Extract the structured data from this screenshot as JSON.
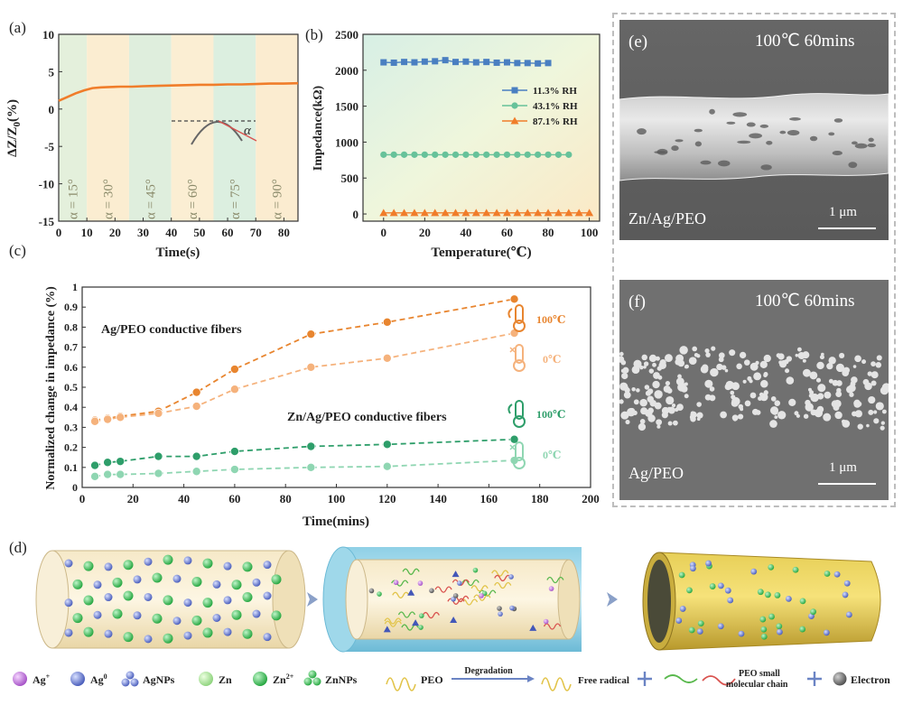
{
  "colors": {
    "orange": "#f07d2a",
    "blue": "#4a7fc1",
    "green": "#67c29a",
    "dark_orange": "#e8852f",
    "light_orange": "#f5b27c",
    "dark_green": "#2e9e6a",
    "light_green": "#8fd6b2"
  },
  "chart_data": [
    {
      "panel": "(a)",
      "type": "line",
      "xlabel": "Time(s)",
      "ylabel": "ΔZ/Z0(%)",
      "xlim": [
        0,
        85
      ],
      "ylim": [
        -15,
        10
      ],
      "xticks": [
        "0",
        "10",
        "20",
        "30",
        "40",
        "50",
        "60",
        "70",
        "80"
      ],
      "yticks": [
        "-15",
        "-10",
        "-5",
        "0",
        "5",
        "10"
      ],
      "bands": [
        {
          "label": "α = 15°",
          "start": 0,
          "end": 10,
          "color": "#e4f0dc"
        },
        {
          "label": "α = 30°",
          "start": 10,
          "end": 25,
          "color": "#fbedd1"
        },
        {
          "label": "α = 45°",
          "start": 25,
          "end": 40,
          "color": "#dfeedd"
        },
        {
          "label": "α = 60°",
          "start": 40,
          "end": 55,
          "color": "#fbeed3"
        },
        {
          "label": "α = 75°",
          "start": 55,
          "end": 70,
          "color": "#dcefe0"
        },
        {
          "label": "α = 90°",
          "start": 70,
          "end": 85,
          "color": "#fbecd0"
        }
      ],
      "x": [
        0,
        3,
        6,
        9,
        12,
        15,
        18,
        22,
        26,
        30,
        35,
        40,
        45,
        50,
        55,
        60,
        65,
        70,
        75,
        80,
        85
      ],
      "y": [
        1.1,
        1.6,
        2.1,
        2.5,
        2.8,
        2.9,
        2.95,
        3.0,
        3.0,
        3.05,
        3.1,
        3.15,
        3.2,
        3.25,
        3.25,
        3.3,
        3.3,
        3.35,
        3.4,
        3.4,
        3.45
      ],
      "inset_label": "α"
    },
    {
      "panel": "(b)",
      "type": "line",
      "xlabel": "Temperature(℃)",
      "ylabel": "Impedance(kΩ)",
      "xlim": [
        -10,
        105
      ],
      "ylim": [
        -100,
        2500
      ],
      "xticks": [
        "0",
        "20",
        "40",
        "60",
        "80",
        "100"
      ],
      "yticks": [
        "0",
        "500",
        "1000",
        "1500",
        "2000",
        "2500"
      ],
      "series": [
        {
          "name": "11.3% RH",
          "marker": "square",
          "color": "#4a7fc1",
          "x": [
            0,
            5,
            10,
            15,
            20,
            25,
            30,
            35,
            40,
            45,
            50,
            55,
            60,
            65,
            70,
            75,
            80
          ],
          "y": [
            2110,
            2105,
            2115,
            2110,
            2120,
            2125,
            2140,
            2115,
            2120,
            2110,
            2115,
            2105,
            2110,
            2100,
            2100,
            2095,
            2100
          ]
        },
        {
          "name": "43.1% RH",
          "marker": "circle",
          "color": "#67c29a",
          "x": [
            0,
            5,
            10,
            15,
            20,
            25,
            30,
            35,
            40,
            45,
            50,
            55,
            60,
            65,
            70,
            75,
            80,
            85,
            90
          ],
          "y": [
            825,
            825,
            825,
            825,
            825,
            825,
            825,
            825,
            825,
            825,
            825,
            825,
            825,
            825,
            825,
            825,
            825,
            825,
            825
          ]
        },
        {
          "name": "87.1% RH",
          "marker": "triangle",
          "color": "#f07d2a",
          "x": [
            0,
            5,
            10,
            15,
            20,
            25,
            30,
            35,
            40,
            45,
            50,
            55,
            60,
            65,
            70,
            75,
            80,
            85,
            90,
            95,
            100
          ],
          "y": [
            15,
            15,
            15,
            15,
            15,
            15,
            15,
            15,
            15,
            15,
            15,
            15,
            15,
            15,
            15,
            15,
            15,
            15,
            15,
            15,
            15
          ]
        }
      ]
    },
    {
      "panel": "(c)",
      "type": "line",
      "xlabel": "Time(mins)",
      "ylabel": "Normalized change in impedance (%)",
      "xlim": [
        0,
        200
      ],
      "ylim": [
        0,
        1
      ],
      "xticks": [
        "0",
        "20",
        "40",
        "60",
        "80",
        "100",
        "120",
        "140",
        "160",
        "180",
        "200"
      ],
      "yticks": [
        "0",
        "0.1",
        "0.2",
        "0.3",
        "0.4",
        "0.5",
        "0.6",
        "0.7",
        "0.8",
        "0.9",
        "1"
      ],
      "annotations": [
        "Ag/PEO conductive fibers",
        "Zn/Ag/PEO conductive fibers"
      ],
      "series": [
        {
          "name": "100℃",
          "group": "Ag/PEO",
          "color": "#e8852f",
          "x": [
            5,
            10,
            15,
            30,
            45,
            60,
            90,
            120,
            170
          ],
          "y": [
            0.335,
            0.345,
            0.355,
            0.38,
            0.475,
            0.59,
            0.765,
            0.825,
            0.94
          ]
        },
        {
          "name": "0℃",
          "group": "Ag/PEO",
          "color": "#f5b27c",
          "x": [
            5,
            10,
            15,
            30,
            45,
            60,
            90,
            120,
            170
          ],
          "y": [
            0.33,
            0.34,
            0.35,
            0.37,
            0.405,
            0.49,
            0.6,
            0.645,
            0.77
          ]
        },
        {
          "name": "100℃",
          "group": "Zn/Ag/PEO",
          "color": "#2e9e6a",
          "x": [
            5,
            10,
            15,
            30,
            45,
            60,
            90,
            120,
            170
          ],
          "y": [
            0.11,
            0.125,
            0.13,
            0.155,
            0.155,
            0.18,
            0.205,
            0.215,
            0.24
          ]
        },
        {
          "name": "0℃",
          "group": "Zn/Ag/PEO",
          "color": "#8fd6b2",
          "x": [
            5,
            10,
            15,
            30,
            45,
            60,
            90,
            120,
            170
          ],
          "y": [
            0.055,
            0.065,
            0.065,
            0.07,
            0.08,
            0.09,
            0.1,
            0.105,
            0.135
          ]
        }
      ]
    }
  ],
  "sem": {
    "e": {
      "panel": "(e)",
      "condition": "100℃ 60mins",
      "sample": "Zn/Ag/PEO",
      "scale": "1 μm"
    },
    "f": {
      "panel": "(f)",
      "condition": "100℃ 60mins",
      "sample": "Ag/PEO",
      "scale": "1 μm"
    }
  },
  "schematic": {
    "panel": "(d)",
    "legend": {
      "ag_plus": "Ag",
      "ag_plus_sup": "+",
      "ag_zero": "Ag",
      "ag_zero_sup": "0",
      "agnps": "AgNPs",
      "zn": "Zn",
      "zn2": "Zn",
      "zn2_sup": "2+",
      "znnps": "ZnNPs",
      "peo": "PEO",
      "degradation": "Degradation",
      "free_radical": "Free radical",
      "peo_small_1": "PEO small",
      "peo_small_2": "molecular chain",
      "electron": "Electron"
    }
  }
}
